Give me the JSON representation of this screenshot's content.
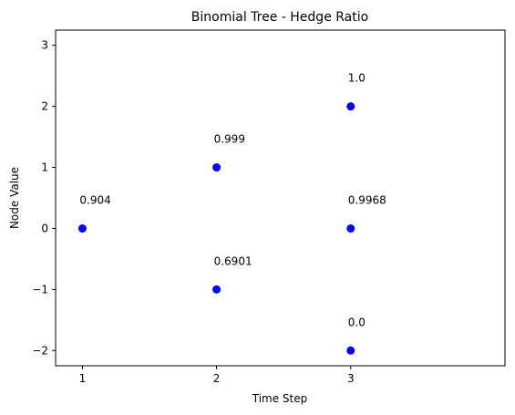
{
  "chart_data": {
    "type": "scatter",
    "title": "Binomial Tree - Hedge Ratio",
    "xlabel": "Time Step",
    "ylabel": "Node Value",
    "xlim": [
      0.8,
      4.15
    ],
    "ylim": [
      -2.25,
      3.25
    ],
    "xticks": [
      "1",
      "2",
      "3"
    ],
    "yticks": [
      "3",
      "2",
      "1",
      "0",
      "−1",
      "−2"
    ],
    "marker_color": "#0000ff",
    "grid": false,
    "points": [
      {
        "x": 1,
        "y": 0,
        "label": "0.904"
      },
      {
        "x": 2,
        "y": 1,
        "label": "0.999"
      },
      {
        "x": 2,
        "y": -1,
        "label": "0.6901"
      },
      {
        "x": 3,
        "y": 2,
        "label": "1.0"
      },
      {
        "x": 3,
        "y": 0,
        "label": "0.9968"
      },
      {
        "x": 3,
        "y": -2,
        "label": "0.0"
      }
    ]
  }
}
